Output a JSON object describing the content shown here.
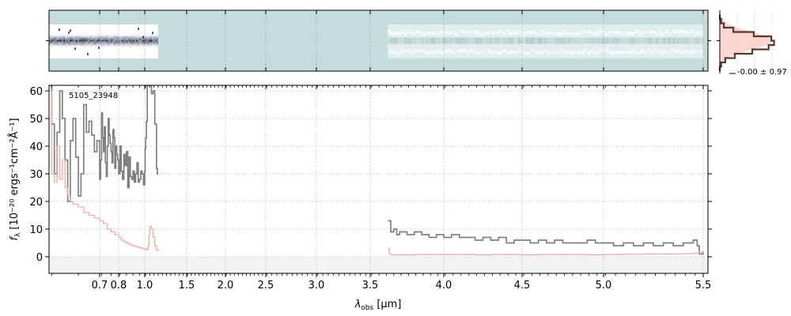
{
  "chart_data": [
    {
      "type": "heatmap",
      "panel": "2d-spectrum",
      "segments": [
        {
          "x_range": [
            0.605,
            1.16
          ],
          "style": "dark-trace"
        },
        {
          "x_range": [
            3.62,
            5.5
          ],
          "style": "faint-trace"
        }
      ],
      "background_color": "#c5dcdc",
      "trace_color": "#1e2a48"
    },
    {
      "type": "line",
      "panel": "spectrum",
      "object_label": "5105_23948",
      "xlabel": "λ",
      "xlabel_sub": "obs",
      "xlabel_unit": " [μm]",
      "ylabel": "f",
      "ylabel_sub": "λ",
      "ylabel_unit": " [10⁻²⁰ ergs⁻¹cm⁻²Å⁻¹]",
      "ylim": [
        -6,
        62
      ],
      "x_ticks": [
        0.7,
        0.8,
        1.0,
        1.5,
        2.0,
        2.5,
        3.0,
        3.5,
        4.0,
        4.5,
        5.0,
        5.5
      ],
      "x_tick_labels": [
        "0.7",
        "0.8",
        "1.0",
        "1.5",
        "2.0",
        "2.5",
        "3.0",
        "3.5",
        "4.0",
        "4.5",
        "5.0",
        "5.5"
      ],
      "y_ticks": [
        0,
        10,
        20,
        30,
        40,
        50,
        60
      ],
      "y_tick_labels": [
        "0",
        "10",
        "20",
        "30",
        "40",
        "50",
        "60"
      ],
      "grid": true,
      "series": [
        {
          "color": "#808080",
          "segments": [
            {
              "x": [
                0.605,
                0.61,
                0.615,
                0.62,
                0.625,
                0.63,
                0.635,
                0.64,
                0.645,
                0.65,
                0.655,
                0.66,
                0.665,
                0.67,
                0.675,
                0.68,
                0.685,
                0.69,
                0.695,
                0.7,
                0.705,
                0.71,
                0.715,
                0.72,
                0.725,
                0.73,
                0.735,
                0.74,
                0.745,
                0.75,
                0.755,
                0.76,
                0.765,
                0.77,
                0.775,
                0.78,
                0.785,
                0.79,
                0.795,
                0.8,
                0.81,
                0.82,
                0.83,
                0.84,
                0.85,
                0.86,
                0.87,
                0.88,
                0.89,
                0.9,
                0.91,
                0.92,
                0.93,
                0.94,
                0.95,
                0.96,
                0.97,
                0.98,
                0.99,
                1.0,
                1.005,
                1.01,
                1.02,
                1.03,
                1.04,
                1.05,
                1.06,
                1.08,
                1.1,
                1.12,
                1.14,
                1.15,
                1.16
              ],
              "y": [
                62,
                48,
                30,
                45,
                60,
                50,
                35,
                20,
                42,
                50,
                36,
                22,
                30,
                55,
                45,
                49,
                44,
                38,
                42,
                28,
                35,
                52,
                43,
                38,
                47,
                34,
                29,
                40,
                50,
                44,
                41,
                38,
                34,
                46,
                43,
                32,
                40,
                37,
                35,
                30,
                40,
                31,
                28,
                37,
                33,
                38,
                25,
                36,
                29,
                28,
                31,
                27,
                30,
                34,
                27,
                28,
                31,
                30,
                26,
                31,
                39,
                43,
                49,
                62,
                62,
                62,
                62,
                59,
                60,
                48,
                32,
                30,
                30
              ]
            },
            {
              "x": [
                3.62,
                3.64,
                3.66,
                3.68,
                3.7,
                3.75,
                3.8,
                3.85,
                3.9,
                3.95,
                4.0,
                4.05,
                4.1,
                4.15,
                4.2,
                4.25,
                4.3,
                4.35,
                4.4,
                4.45,
                4.5,
                4.55,
                4.6,
                4.65,
                4.7,
                4.75,
                4.8,
                4.85,
                4.9,
                4.95,
                5.0,
                5.05,
                5.1,
                5.15,
                5.2,
                5.25,
                5.3,
                5.35,
                5.4,
                5.45,
                5.47,
                5.48,
                5.49,
                5.5
              ],
              "y": [
                13,
                9,
                10,
                8,
                9,
                8,
                9,
                8,
                7,
                8,
                7,
                8,
                7,
                7,
                6,
                7,
                6,
                7,
                5,
                6,
                6,
                5,
                6,
                5,
                6,
                5,
                5,
                5,
                6,
                5,
                5,
                4,
                5,
                4,
                5,
                4,
                5,
                4,
                5,
                6,
                4,
                1,
                1,
                2
              ]
            }
          ]
        },
        {
          "color": "#f4aaa3",
          "segments": [
            {
              "x": [
                0.605,
                0.61,
                0.615,
                0.62,
                0.625,
                0.63,
                0.635,
                0.64,
                0.645,
                0.65,
                0.66,
                0.67,
                0.68,
                0.69,
                0.7,
                0.72,
                0.74,
                0.76,
                0.78,
                0.8,
                0.82,
                0.84,
                0.86,
                0.88,
                0.9,
                0.92,
                0.94,
                0.96,
                0.98,
                1.0,
                1.01,
                1.02,
                1.03,
                1.04,
                1.05,
                1.06,
                1.08,
                1.1,
                1.12,
                1.14,
                1.16
              ],
              "y": [
                60,
                30,
                27,
                40,
                28,
                35,
                25,
                22,
                20,
                19,
                18,
                16,
                15,
                14,
                13,
                12,
                10,
                9,
                8,
                7,
                6,
                5.5,
                5,
                4.5,
                4,
                3.8,
                3.5,
                3.2,
                3.0,
                2.8,
                2.6,
                2.5,
                2.7,
                4,
                8,
                11,
                10,
                7,
                4,
                2.5,
                2.0
              ]
            },
            {
              "x": [
                3.62,
                3.63,
                3.64,
                3.7,
                3.8,
                3.9,
                4.0,
                4.1,
                4.2,
                4.3,
                4.4,
                4.5,
                4.6,
                4.7,
                4.8,
                4.9,
                5.0,
                5.1,
                5.2,
                5.3,
                5.4,
                5.45,
                5.48,
                5.5
              ],
              "y": [
                3.0,
                1.0,
                0.7,
                0.7,
                0.8,
                0.8,
                0.8,
                0.8,
                0.7,
                0.8,
                0.8,
                0.7,
                0.8,
                0.8,
                0.8,
                0.7,
                0.8,
                0.9,
                1.0,
                1.0,
                1.1,
                1.3,
                1.6,
                1.2
              ]
            }
          ]
        }
      ]
    },
    {
      "type": "line",
      "panel": "residual-histogram",
      "annotation": "-0.00 ± 0.97",
      "series": [
        {
          "color": "#5a3a30",
          "x": [
            -3.0,
            -2.5,
            -2.0,
            -1.5,
            -1.0,
            -0.5,
            0.0,
            0.5,
            1.0,
            1.5,
            2.0,
            2.5,
            3.0
          ],
          "y": [
            0.0,
            0.01,
            0.03,
            0.1,
            0.25,
            0.38,
            0.4,
            0.36,
            0.24,
            0.11,
            0.04,
            0.01,
            0.0
          ]
        },
        {
          "color": "#f7c6b9",
          "x": [
            -3.0,
            -2.5,
            -2.0,
            -1.5,
            -1.0,
            -0.5,
            0.0,
            0.5,
            1.0,
            1.5,
            2.0,
            2.5,
            3.0
          ],
          "y": [
            0.0,
            0.02,
            0.05,
            0.13,
            0.24,
            0.35,
            0.4,
            0.35,
            0.24,
            0.13,
            0.05,
            0.02,
            0.0
          ]
        }
      ]
    }
  ]
}
